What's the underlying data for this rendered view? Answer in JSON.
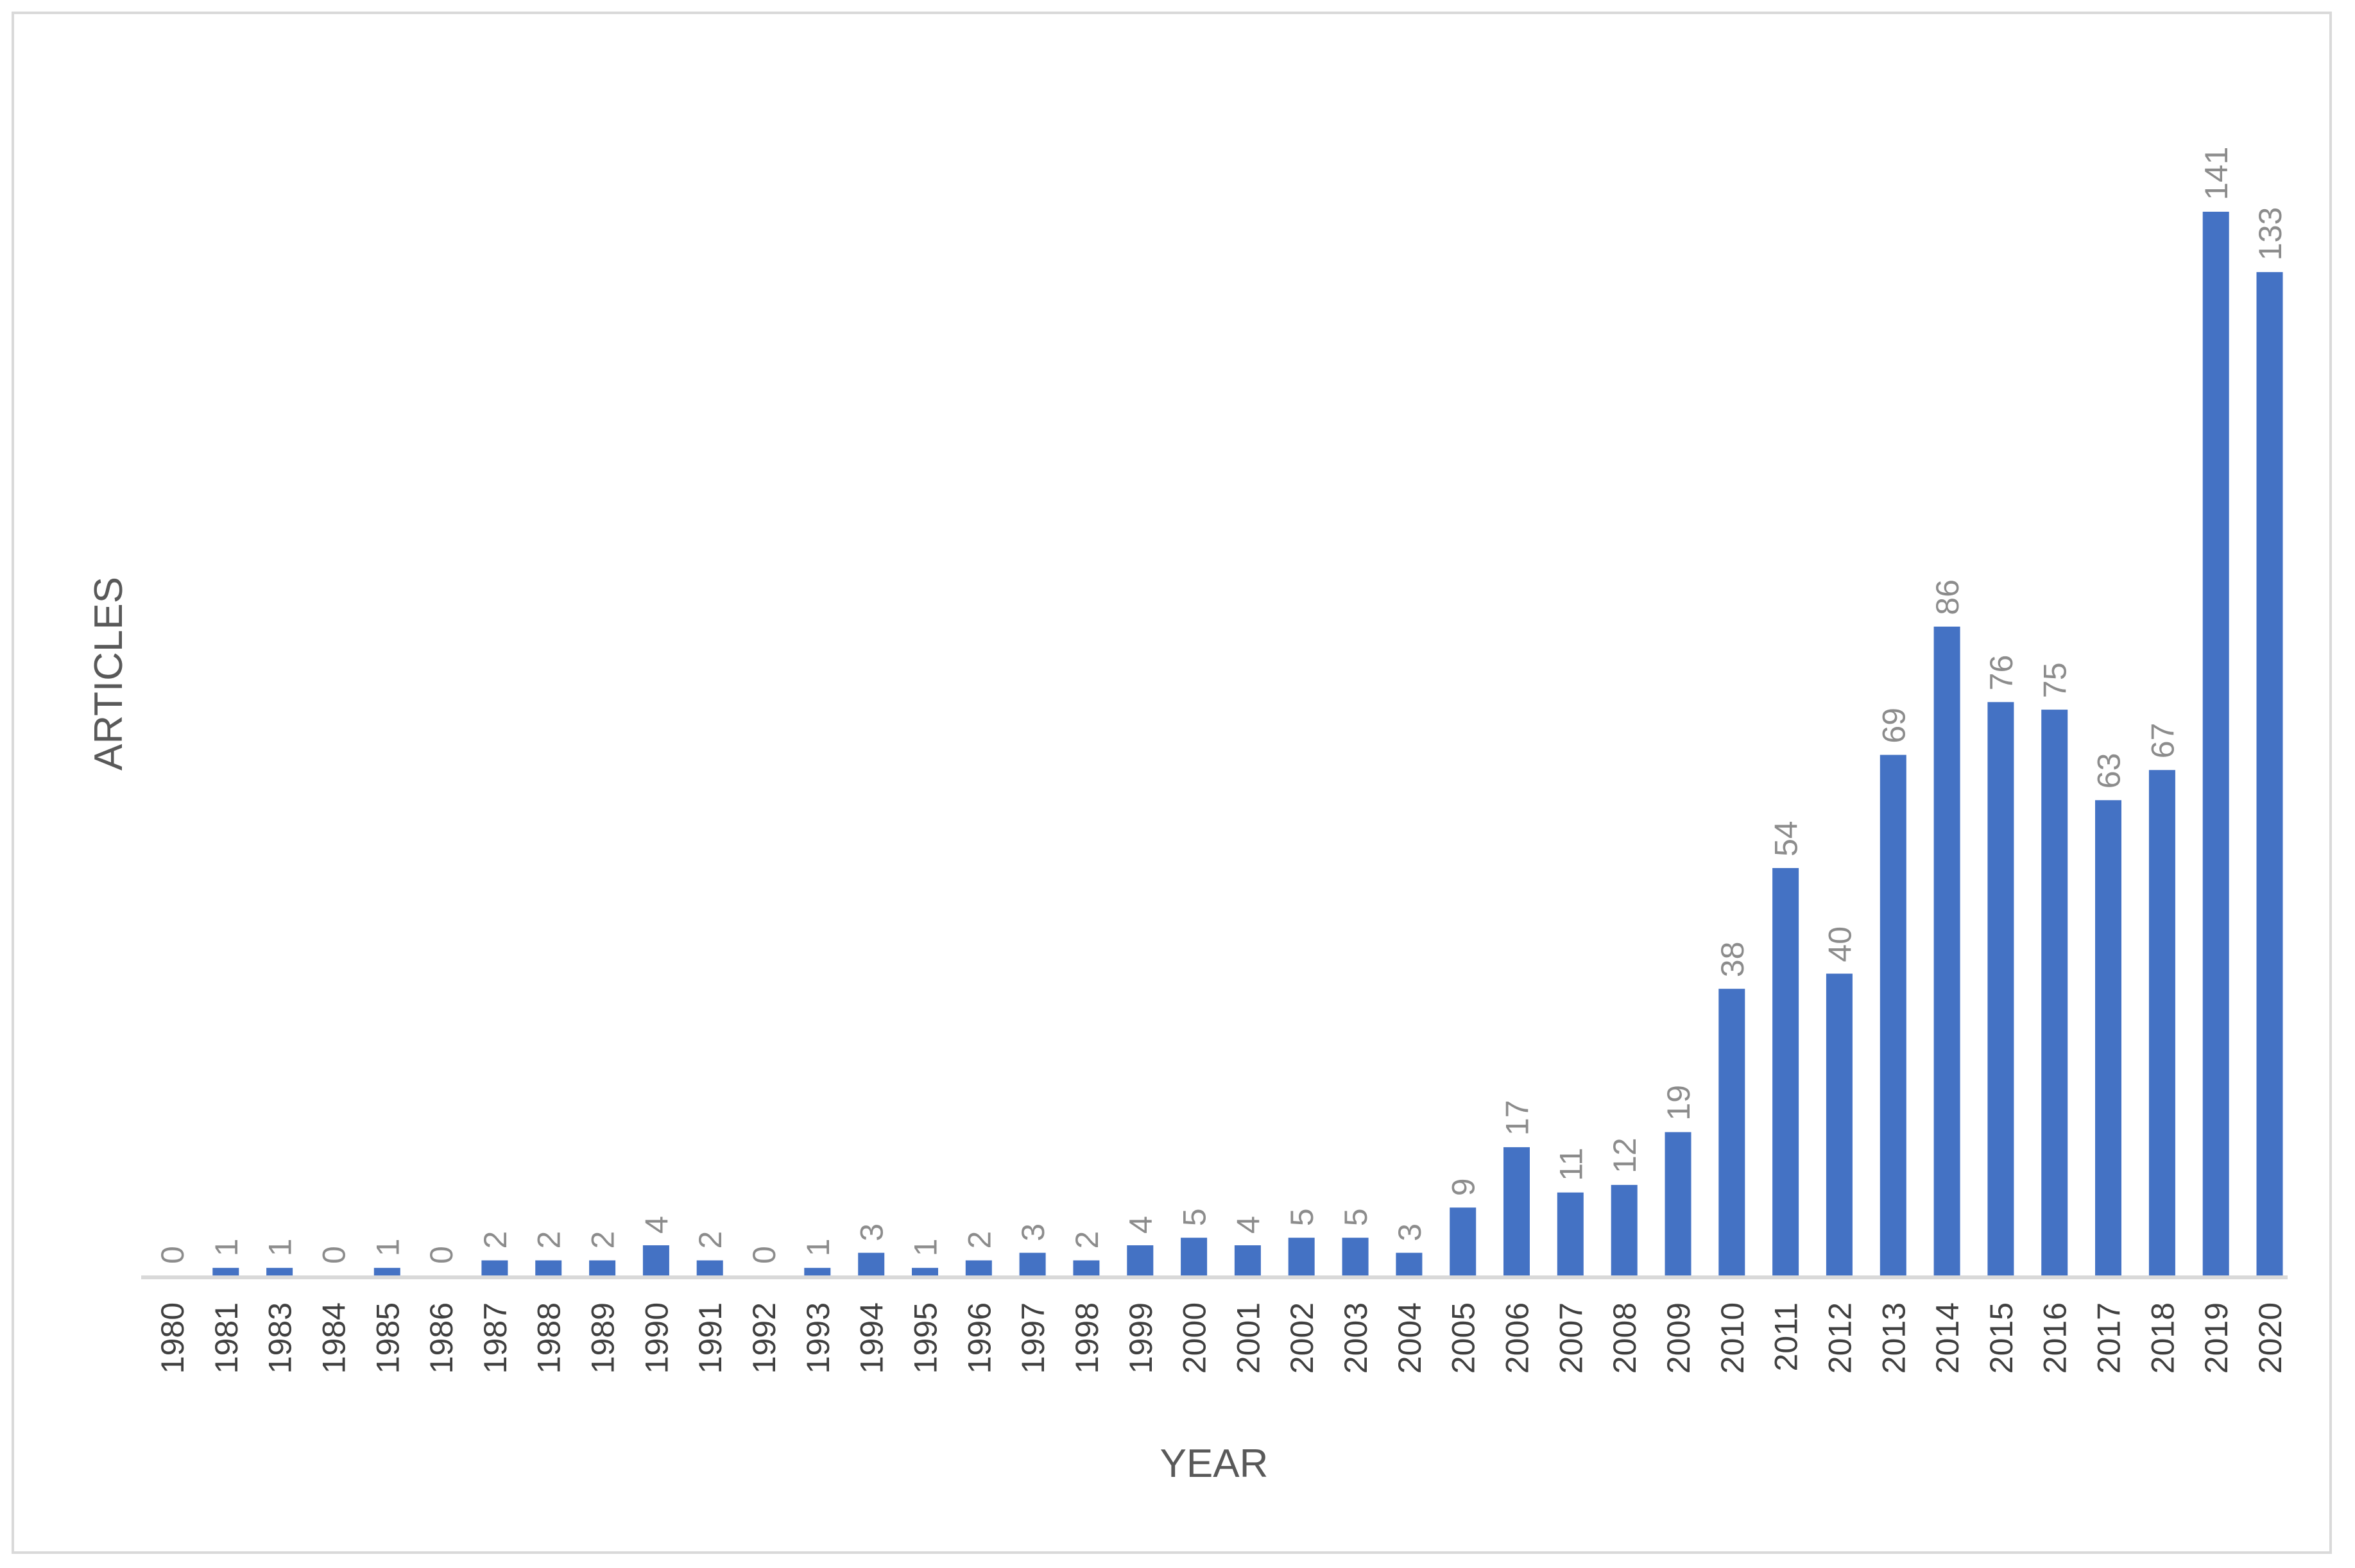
{
  "chart_data": {
    "type": "bar",
    "title": "",
    "xlabel": "YEAR",
    "ylabel": "ARTICLES",
    "categories": [
      "1980",
      "1981",
      "1983",
      "1984",
      "1985",
      "1986",
      "1987",
      "1988",
      "1989",
      "1990",
      "1991",
      "1992",
      "1993",
      "1994",
      "1995",
      "1996",
      "1997",
      "1998",
      "1999",
      "2000",
      "2001",
      "2002",
      "2003",
      "2004",
      "2005",
      "2006",
      "2007",
      "2008",
      "2009",
      "2010",
      "2011",
      "2012",
      "2013",
      "2014",
      "2015",
      "2016",
      "2017",
      "2018",
      "2019",
      "2020"
    ],
    "values": [
      0,
      1,
      1,
      0,
      1,
      0,
      2,
      2,
      2,
      4,
      2,
      0,
      1,
      3,
      1,
      2,
      3,
      2,
      4,
      5,
      4,
      5,
      5,
      3,
      9,
      17,
      11,
      12,
      19,
      38,
      54,
      40,
      69,
      86,
      76,
      75,
      63,
      67,
      141,
      133
    ],
    "ylim": [
      0,
      141
    ],
    "grid": false,
    "legend": "none",
    "data_labels": true,
    "colors": {
      "bar": "#4472c4",
      "axis_line": "#d9d9d9",
      "frame": "#d9d9d9"
    }
  }
}
